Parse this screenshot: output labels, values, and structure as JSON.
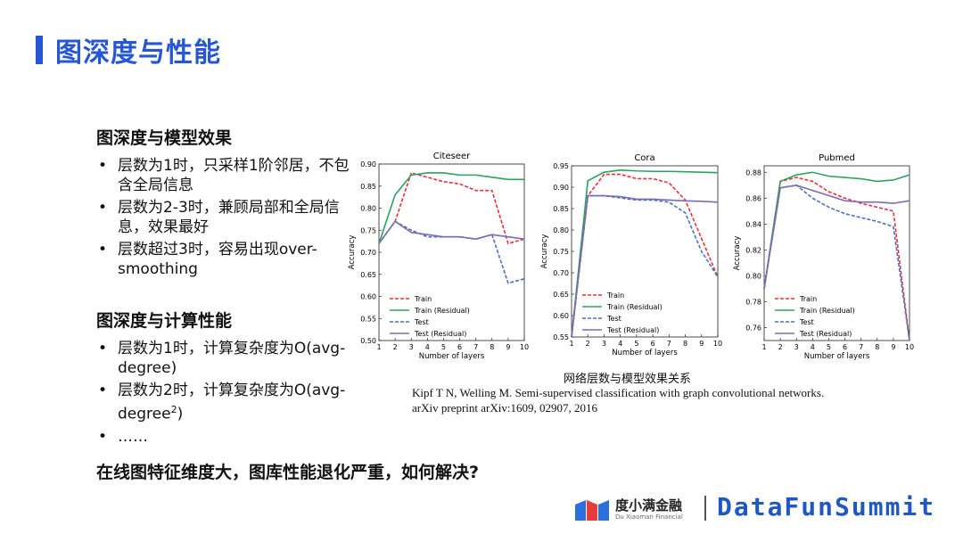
{
  "header": {
    "title": "图深度与性能"
  },
  "sections": [
    {
      "heading": "图深度与模型效果",
      "bullets": [
        {
          "text": "层数为1时，只采样1阶邻居，不包含全局信息"
        },
        {
          "text": "层数为2-3时，兼顾局部和全局信息，效果最好"
        },
        {
          "text": "层数超过3时，容易出现over-smoothing"
        }
      ]
    },
    {
      "heading": "图深度与计算性能",
      "bullets": [
        {
          "text": "层数为1时，计算复杂度为O(avg-degree)"
        },
        {
          "text": "层数为2时，计算复杂度为O(avg-degree",
          "sup": "2",
          "after": ")"
        },
        {
          "text": "……"
        }
      ]
    }
  ],
  "caption": "网络层数与模型效果关系",
  "citation": [
    "Kipf T N, Welling M. Semi-supervised classification with graph convolutional networks.",
    "arXiv preprint arXiv:1609, 02907, 2016"
  ],
  "question": "在线图特征维度大，图库性能退化严重，如何解决?",
  "footer": {
    "logo_cn": "度小满金融",
    "logo_en": "Du Xiaoman Financial",
    "brand": "DataFunSummit"
  },
  "chart_data": [
    {
      "type": "line",
      "title": "Citeseer",
      "x_label": "Number of layers",
      "y_label": "Accuracy",
      "legend": "lower left",
      "x": [
        1,
        2,
        3,
        4,
        5,
        6,
        7,
        8,
        9,
        10
      ],
      "xlim": [
        1,
        10
      ],
      "xticks": [
        1,
        2,
        3,
        4,
        5,
        6,
        7,
        8,
        9,
        10
      ],
      "ylim": [
        0.5,
        0.9
      ],
      "yticks": [
        {
          "value": 0.5,
          "label": "0.50"
        },
        0.55,
        {
          "value": 0.6,
          "label": "0.60"
        },
        0.65,
        {
          "value": 0.7,
          "label": "0.70"
        },
        0.75,
        {
          "value": 0.8,
          "label": "0.80"
        },
        0.85,
        {
          "value": 0.9,
          "label": "0.90"
        }
      ],
      "series": [
        {
          "name": "Train",
          "color": "#e8303a",
          "dashed": true,
          "values": [
            0.72,
            0.77,
            0.88,
            0.87,
            0.86,
            0.855,
            0.84,
            0.84,
            0.72,
            0.73
          ]
        },
        {
          "name": "Train (Residual)",
          "color": "#2ca25f",
          "dashed": false,
          "values": [
            0.72,
            0.83,
            0.875,
            0.88,
            0.88,
            0.875,
            0.875,
            0.87,
            0.865,
            0.865
          ]
        },
        {
          "name": "Test",
          "color": "#4a6fbf",
          "dashed": true,
          "values": [
            0.72,
            0.77,
            0.75,
            0.735,
            0.735,
            0.735,
            0.73,
            0.74,
            0.63,
            0.64
          ]
        },
        {
          "name": "Test (Residual)",
          "color": "#7b6bb0",
          "dashed": false,
          "values": [
            0.72,
            0.77,
            0.745,
            0.74,
            0.735,
            0.735,
            0.73,
            0.74,
            0.735,
            0.73
          ]
        }
      ]
    },
    {
      "type": "line",
      "title": "Cora",
      "x_label": "Number of layers",
      "y_label": "Accuracy",
      "legend": "lower left",
      "x": [
        1,
        2,
        3,
        4,
        5,
        6,
        7,
        8,
        9,
        10
      ],
      "xlim": [
        1,
        10
      ],
      "xticks": [
        1,
        2,
        3,
        4,
        5,
        6,
        7,
        8,
        9,
        10
      ],
      "ylim": [
        0.55,
        0.95
      ],
      "yticks": [
        0.55,
        {
          "value": 0.6,
          "label": "0.60"
        },
        0.65,
        {
          "value": 0.7,
          "label": "0.70"
        },
        0.75,
        {
          "value": 0.8,
          "label": "0.80"
        },
        0.85,
        {
          "value": 0.9,
          "label": "0.90"
        },
        0.95
      ],
      "series": [
        {
          "name": "Train",
          "color": "#e8303a",
          "dashed": true,
          "values": [
            0.55,
            0.88,
            0.93,
            0.93,
            0.92,
            0.92,
            0.91,
            0.87,
            0.78,
            0.69
          ]
        },
        {
          "name": "Train (Residual)",
          "color": "#2ca25f",
          "dashed": false,
          "values": [
            0.55,
            0.915,
            0.935,
            0.94,
            0.938,
            0.937,
            0.937,
            0.936,
            0.935,
            0.934
          ]
        },
        {
          "name": "Test",
          "color": "#4a6fbf",
          "dashed": true,
          "values": [
            0.55,
            0.88,
            0.88,
            0.875,
            0.87,
            0.87,
            0.865,
            0.84,
            0.75,
            0.69
          ]
        },
        {
          "name": "Test (Residual)",
          "color": "#7b6bb0",
          "dashed": false,
          "values": [
            0.55,
            0.88,
            0.88,
            0.878,
            0.872,
            0.872,
            0.87,
            0.868,
            0.867,
            0.865
          ]
        }
      ]
    },
    {
      "type": "line",
      "title": "Pubmed",
      "x_label": "Number of layers",
      "y_label": "Accuracy",
      "legend": "lower left",
      "x": [
        1,
        2,
        3,
        4,
        5,
        6,
        7,
        8,
        9,
        10
      ],
      "xlim": [
        1,
        10
      ],
      "xticks": [
        1,
        2,
        3,
        4,
        5,
        6,
        7,
        8,
        9,
        10
      ],
      "ylim": [
        0.75,
        0.885
      ],
      "yticks": [
        0.76,
        0.78,
        {
          "value": 0.8,
          "label": "0.80"
        },
        0.82,
        0.84,
        0.86,
        0.88
      ],
      "series": [
        {
          "name": "Train",
          "color": "#e8303a",
          "dashed": true,
          "values": [
            0.79,
            0.873,
            0.876,
            0.873,
            0.865,
            0.86,
            0.856,
            0.853,
            0.85,
            0.75
          ]
        },
        {
          "name": "Train (Residual)",
          "color": "#2ca25f",
          "dashed": false,
          "values": [
            0.79,
            0.873,
            0.878,
            0.88,
            0.877,
            0.876,
            0.875,
            0.873,
            0.874,
            0.878
          ]
        },
        {
          "name": "Test",
          "color": "#4a6fbf",
          "dashed": true,
          "values": [
            0.79,
            0.868,
            0.87,
            0.86,
            0.853,
            0.848,
            0.845,
            0.842,
            0.838,
            0.75
          ]
        },
        {
          "name": "Test (Residual)",
          "color": "#7b6bb0",
          "dashed": false,
          "values": [
            0.79,
            0.868,
            0.87,
            0.866,
            0.862,
            0.858,
            0.857,
            0.857,
            0.856,
            0.858
          ]
        }
      ]
    }
  ]
}
